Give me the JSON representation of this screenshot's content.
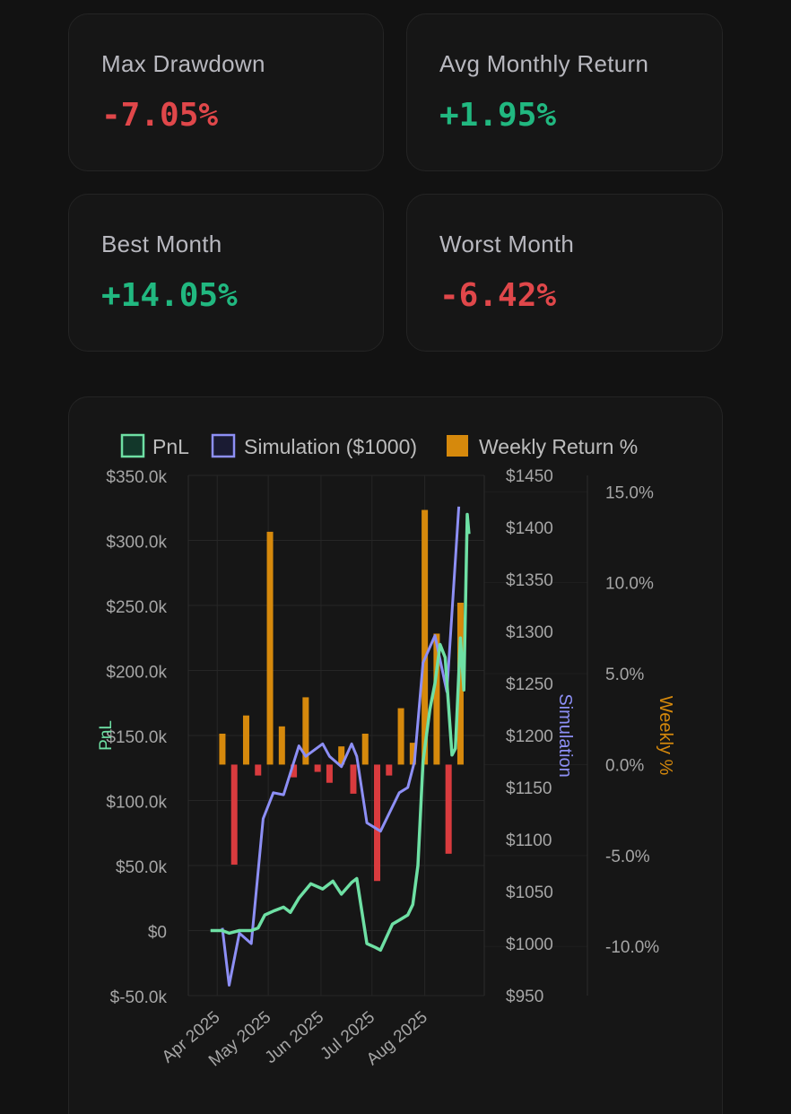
{
  "stats": [
    {
      "label": "Max Drawdown",
      "value": "-7.05%",
      "tone": "negative"
    },
    {
      "label": "Avg Monthly Return",
      "value": "+1.95%",
      "tone": "positive"
    },
    {
      "label": "Best Month",
      "value": "+14.05%",
      "tone": "positive"
    },
    {
      "label": "Worst Month",
      "value": "-6.42%",
      "tone": "negative"
    }
  ],
  "colors": {
    "pnl": "#6ee0a4",
    "simulation": "#8d8ff5",
    "weekly_positive": "#d6890c",
    "weekly_negative": "#d93b3e",
    "positive_text": "#21b880",
    "negative_text": "#e0474a"
  },
  "chart_data": {
    "type": "line",
    "legend": [
      "PnL",
      "Simulation ($1000)",
      "Weekly Return %"
    ],
    "legend_position": "top",
    "x_ticks": [
      "Apr 2025",
      "May 2025",
      "Jun 2025",
      "Jul 2025",
      "Aug 2025"
    ],
    "y_left": {
      "label": "PnL",
      "ticks": [
        "$350.0k",
        "$300.0k",
        "$250.0k",
        "$200.0k",
        "$150.0k",
        "$100.0k",
        "$50.0k",
        "$0",
        "$-50.0k"
      ],
      "range": [
        -50000,
        350000
      ]
    },
    "y_sim": {
      "label": "Simulation",
      "ticks": [
        "$1450",
        "$1400",
        "$1350",
        "$1300",
        "$1250",
        "$1200",
        "$1150",
        "$1100",
        "$1050",
        "$1000",
        "$950"
      ],
      "range": [
        950,
        1450
      ]
    },
    "y_weekly": {
      "label": "Weekly %",
      "ticks": [
        "15.0%",
        "10.0%",
        "5.0%",
        "0.0%",
        "-5.0%",
        "-10.0%"
      ],
      "range": [
        -12.7,
        15.9
      ]
    },
    "grid": true,
    "series": [
      {
        "name": "PnL",
        "points": [
          [
            "2025-03-28",
            0
          ],
          [
            "2025-04-04",
            0
          ],
          [
            "2025-04-08",
            -2000
          ],
          [
            "2025-04-14",
            0
          ],
          [
            "2025-04-21",
            0
          ],
          [
            "2025-04-25",
            2000
          ],
          [
            "2025-04-29",
            12000
          ],
          [
            "2025-05-04",
            15000
          ],
          [
            "2025-05-10",
            18000
          ],
          [
            "2025-05-14",
            14000
          ],
          [
            "2025-05-19",
            25000
          ],
          [
            "2025-05-26",
            36000
          ],
          [
            "2025-06-02",
            32000
          ],
          [
            "2025-06-08",
            38000
          ],
          [
            "2025-06-13",
            28000
          ],
          [
            "2025-06-19",
            37000
          ],
          [
            "2025-06-22",
            40000
          ],
          [
            "2025-06-28",
            -10000
          ],
          [
            "2025-07-03",
            -13000
          ],
          [
            "2025-07-06",
            -15000
          ],
          [
            "2025-07-13",
            5000
          ],
          [
            "2025-07-17",
            8000
          ],
          [
            "2025-07-22",
            12000
          ],
          [
            "2025-07-25",
            20000
          ],
          [
            "2025-07-28",
            50000
          ],
          [
            "2025-07-31",
            130000
          ],
          [
            "2025-08-04",
            170000
          ],
          [
            "2025-08-07",
            190000
          ],
          [
            "2025-08-10",
            220000
          ],
          [
            "2025-08-13",
            210000
          ],
          [
            "2025-08-17",
            135000
          ],
          [
            "2025-08-19",
            140000
          ],
          [
            "2025-08-22",
            225000
          ],
          [
            "2025-08-24",
            185000
          ],
          [
            "2025-08-26",
            320000
          ],
          [
            "2025-08-27",
            305000
          ]
        ]
      },
      {
        "name": "Simulation ($1000)",
        "points": [
          [
            "2025-04-04",
            1015
          ],
          [
            "2025-04-08",
            960
          ],
          [
            "2025-04-14",
            1010
          ],
          [
            "2025-04-21",
            1000
          ],
          [
            "2025-04-28",
            1120
          ],
          [
            "2025-05-04",
            1145
          ],
          [
            "2025-05-10",
            1143
          ],
          [
            "2025-05-19",
            1190
          ],
          [
            "2025-05-23",
            1180
          ],
          [
            "2025-06-02",
            1192
          ],
          [
            "2025-06-06",
            1180
          ],
          [
            "2025-06-13",
            1170
          ],
          [
            "2025-06-19",
            1192
          ],
          [
            "2025-06-22",
            1180
          ],
          [
            "2025-06-28",
            1116
          ],
          [
            "2025-07-06",
            1108
          ],
          [
            "2025-07-17",
            1145
          ],
          [
            "2025-07-22",
            1150
          ],
          [
            "2025-07-26",
            1175
          ],
          [
            "2025-07-31",
            1270
          ],
          [
            "2025-08-07",
            1296
          ],
          [
            "2025-08-14",
            1242
          ],
          [
            "2025-08-21",
            1420
          ]
        ]
      }
    ],
    "bars": {
      "name": "Weekly Return %",
      "points": [
        [
          "2025-04-04",
          1.7
        ],
        [
          "2025-04-11",
          -5.5
        ],
        [
          "2025-04-18",
          2.7
        ],
        [
          "2025-04-25",
          -0.6
        ],
        [
          "2025-05-02",
          12.8
        ],
        [
          "2025-05-09",
          2.1
        ],
        [
          "2025-05-16",
          -0.7
        ],
        [
          "2025-05-23",
          3.7
        ],
        [
          "2025-05-30",
          -0.4
        ],
        [
          "2025-06-06",
          -1.0
        ],
        [
          "2025-06-13",
          1.0
        ],
        [
          "2025-06-20",
          -1.6
        ],
        [
          "2025-06-27",
          1.7
        ],
        [
          "2025-07-04",
          -6.4
        ],
        [
          "2025-07-11",
          -0.6
        ],
        [
          "2025-07-18",
          3.1
        ],
        [
          "2025-07-25",
          1.2
        ],
        [
          "2025-08-01",
          14.0
        ],
        [
          "2025-08-08",
          7.2
        ],
        [
          "2025-08-15",
          -4.9
        ],
        [
          "2025-08-22",
          8.9
        ]
      ]
    }
  }
}
